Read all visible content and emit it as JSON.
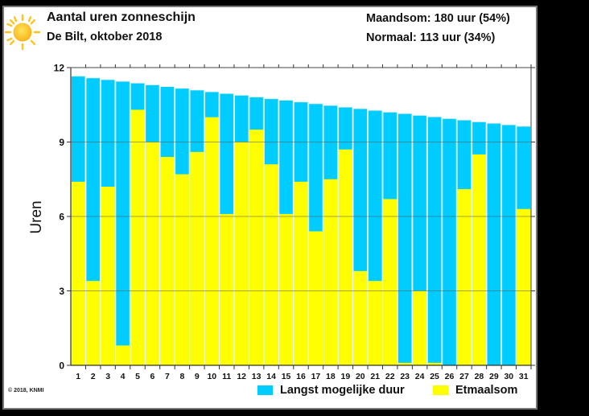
{
  "header": {
    "title": "Aantal uren zonneschijn",
    "subtitle": "De Bilt, oktober 2018",
    "monthly_sum": "Maandsom: 180 uur (54%)",
    "normal": "Normaal: 113 uur (34%)",
    "icon": "sun-icon"
  },
  "footer": {
    "copyright": "© 2018, KNMI"
  },
  "colors": {
    "max_duration": "#00CCFF",
    "daily_sum": "#FFFF00",
    "sun_core": "#FFC93A",
    "sun_rays": "#FFC21E"
  },
  "chart_data": {
    "type": "bar",
    "title": "Aantal uren zonneschijn",
    "subtitle": "De Bilt, oktober 2018",
    "xlabel": "",
    "ylabel": "Uren",
    "ylim": [
      0,
      12
    ],
    "yticks": [
      0,
      3,
      6,
      9,
      12
    ],
    "ytick_labels": [
      "0",
      "3",
      "6",
      "9",
      "12"
    ],
    "grid": true,
    "legend_position": "bottom-right",
    "categories": [
      "1",
      "2",
      "3",
      "4",
      "5",
      "6",
      "7",
      "8",
      "9",
      "10",
      "11",
      "12",
      "13",
      "14",
      "15",
      "16",
      "17",
      "18",
      "19",
      "20",
      "21",
      "22",
      "23",
      "24",
      "25",
      "26",
      "27",
      "28",
      "29",
      "30",
      "31"
    ],
    "series": [
      {
        "name": "Langst mogelijke duur",
        "values": [
          11.65,
          11.58,
          11.51,
          11.44,
          11.37,
          11.3,
          11.23,
          11.16,
          11.09,
          11.02,
          10.95,
          10.88,
          10.81,
          10.74,
          10.68,
          10.61,
          10.54,
          10.47,
          10.4,
          10.34,
          10.27,
          10.2,
          10.14,
          10.07,
          10.01,
          9.94,
          9.88,
          9.81,
          9.75,
          9.69,
          9.63
        ]
      },
      {
        "name": "Etmaalsom",
        "values": [
          7.4,
          3.4,
          7.2,
          0.8,
          10.3,
          9.0,
          8.4,
          7.7,
          8.6,
          10.0,
          6.1,
          9.0,
          9.5,
          8.1,
          6.1,
          7.4,
          5.4,
          7.5,
          8.7,
          3.8,
          3.4,
          6.7,
          0.1,
          3.0,
          0.1,
          0.0,
          7.1,
          8.5,
          0.0,
          0.0,
          6.3
        ]
      }
    ]
  }
}
